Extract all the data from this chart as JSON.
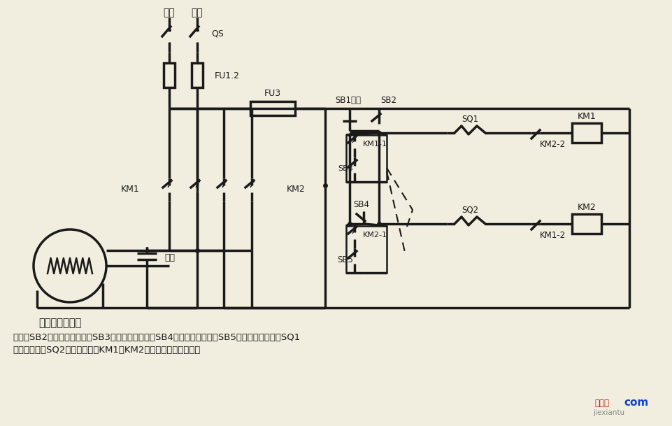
{
  "bg_color": "#f2eedf",
  "lc": "#1a1a1a",
  "title": "单相电容电动机",
  "desc1": "说明：SB2为上升启动按鈕，SB3为上升点动按鈕，SB4为下降启动按鈕，SB5为下降点动按鈕；SQ1",
  "desc2": "为最高限位，SQ2为最低限位。KM1、KM2可用中间继电器代替。",
  "wm_red": "接线图",
  "wm_gray": "jiexiantu",
  "wm_blue": "com"
}
